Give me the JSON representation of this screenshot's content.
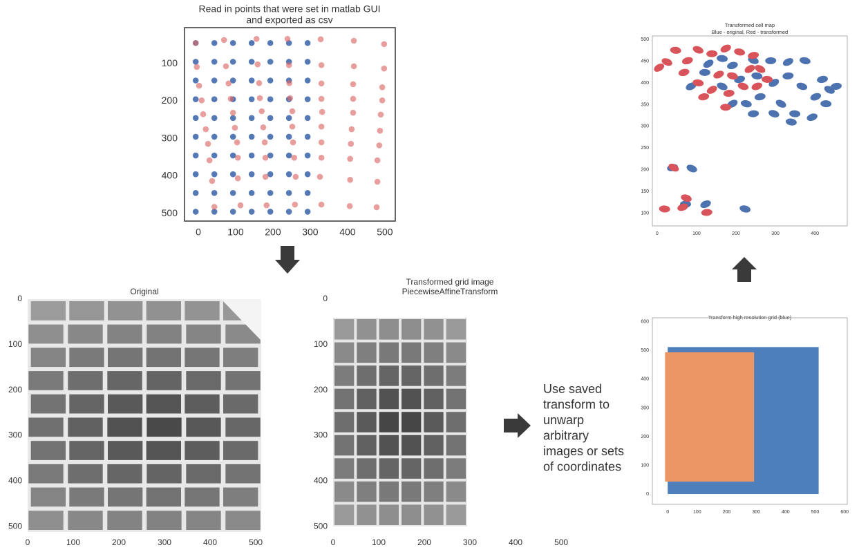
{
  "chart_data": [
    {
      "type": "scatter",
      "title": [
        "Read in points that were set in matlab GUI",
        "and exported as csv"
      ],
      "xlim": [
        -37,
        528
      ],
      "ylim": [
        520,
        4
      ],
      "xticks": [
        0,
        100,
        200,
        300,
        400,
        500
      ],
      "yticks": [
        100,
        200,
        300,
        400,
        500
      ],
      "series": [
        {
          "color": "#4c72b0",
          "x": [
            -7,
            43,
            93,
            143,
            193,
            243,
            293,
            -7,
            43,
            93,
            143,
            193,
            243,
            293,
            -7,
            43,
            93,
            143,
            193,
            243,
            293,
            -7,
            43,
            93,
            143,
            193,
            243,
            293,
            -7,
            43,
            93,
            143,
            193,
            243,
            293,
            -7,
            43,
            93,
            143,
            193,
            243,
            293,
            -7,
            43,
            93,
            143,
            193,
            243,
            293,
            -7,
            43,
            93,
            143,
            193,
            243,
            293,
            -7,
            43,
            93,
            143,
            193,
            243,
            293,
            -7,
            43,
            93,
            143,
            193,
            243,
            293
          ],
          "y": [
            45,
            45,
            45,
            45,
            45,
            45,
            45,
            95,
            95,
            95,
            95,
            95,
            95,
            95,
            145,
            145,
            145,
            145,
            145,
            145,
            145,
            195,
            195,
            195,
            195,
            195,
            195,
            195,
            245,
            245,
            245,
            245,
            245,
            245,
            245,
            295,
            295,
            295,
            295,
            295,
            295,
            295,
            345,
            345,
            345,
            345,
            345,
            345,
            345,
            395,
            395,
            395,
            395,
            395,
            395,
            395,
            445,
            445,
            445,
            445,
            445,
            445,
            445,
            495,
            495,
            495,
            495,
            495,
            495,
            495
          ]
        },
        {
          "color": "#dd6a6a",
          "x": [
            -7,
            69,
            156,
            239,
            328,
            417,
            498,
            -4,
            74,
            159,
            243,
            330,
            417,
            498,
            2,
            81,
            163,
            244,
            330,
            415,
            493,
            9,
            87,
            165,
            246,
            330,
            415,
            493,
            13,
            93,
            170,
            252,
            332,
            415,
            489,
            20,
            98,
            174,
            252,
            330,
            411,
            487,
            26,
            104,
            178,
            254,
            330,
            409,
            485,
            30,
            106,
            180,
            257,
            330,
            407,
            480,
            37,
            106,
            180,
            261,
            326,
            407,
            480,
            43,
            113,
            183,
            259,
            330,
            406,
            478
          ],
          "y": [
            45,
            37,
            34,
            34,
            35,
            39,
            48,
            109,
            107,
            102,
            104,
            104,
            107,
            113,
            159,
            153,
            152,
            152,
            153,
            155,
            163,
            198,
            194,
            192,
            192,
            194,
            194,
            198,
            235,
            231,
            227,
            227,
            229,
            231,
            236,
            275,
            271,
            270,
            268,
            268,
            275,
            279,
            314,
            310,
            310,
            310,
            310,
            314,
            318,
            358,
            351,
            351,
            351,
            351,
            354,
            358,
            413,
            406,
            402,
            402,
            402,
            410,
            415,
            482,
            478,
            478,
            476,
            476,
            480,
            483
          ]
        }
      ]
    },
    {
      "type": "scatter",
      "title": "Transformed cell map",
      "subtitle": "Blue - original, Red - transformed",
      "xlim": [
        -12,
        482
      ],
      "ylim": [
        71,
        508
      ],
      "xticks": [
        0,
        100,
        200,
        300,
        400
      ],
      "yticks": [
        100,
        150,
        200,
        250,
        300,
        350,
        400,
        450,
        500
      ],
      "series": [
        {
          "color": "#4c72b0",
          "x": [
            130,
            165,
            191,
            244,
            288,
            332,
            375,
            419,
            437,
            428,
            402,
            367,
            332,
            296,
            253,
            209,
            165,
            121,
            86,
            226,
            261,
            314,
            349,
            393,
            296,
            244,
            191,
            340,
            39,
            88,
            72,
            123,
            223,
            454
          ],
          "y": [
            444,
            456,
            440,
            452,
            451,
            448,
            451,
            408,
            384,
            352,
            368,
            392,
            416,
            400,
            416,
            408,
            392,
            424,
            392,
            352,
            368,
            352,
            329,
            321,
            329,
            329,
            352,
            310,
            205,
            203,
            121,
            121,
            110,
            392
          ]
        },
        {
          "color": "#d9545a",
          "x": [
            5,
            47,
            77,
            104,
            139,
            174,
            209,
            244,
            261,
            279,
            253,
            218,
            182,
            139,
            104,
            68,
            25,
            174,
            156,
            191,
            118,
            42,
            19,
            65,
            74,
            126,
            235
          ],
          "y": [
            435,
            475,
            451,
            476,
            467,
            479,
            471,
            463,
            432,
            408,
            392,
            392,
            376,
            384,
            400,
            424,
            448,
            344,
            419,
            416,
            368,
            205,
            110,
            114,
            135,
            102,
            432
          ]
        }
      ]
    },
    {
      "type": "image",
      "title": "Original",
      "xlim": [
        0,
        512
      ],
      "ylim": [
        512,
        0
      ],
      "xticks": [
        0,
        100,
        200,
        300,
        400,
        500
      ],
      "yticks": [
        0,
        100,
        200,
        300,
        400,
        500
      ]
    },
    {
      "type": "image",
      "title": [
        "Transformed grid image",
        "PiecewiseAffineTransform"
      ],
      "xlim": [
        0,
        512
      ],
      "ylim": [
        512,
        0
      ],
      "xticks": [
        0,
        100,
        200,
        300,
        400,
        500
      ],
      "yticks": [
        0,
        100,
        200,
        300,
        400,
        500
      ]
    },
    {
      "type": "region",
      "title": "Transform high resolution grid (blue)",
      "xlim": [
        -52,
        609
      ],
      "ylim": [
        -36,
        614
      ],
      "xticks": [
        0,
        100,
        200,
        300,
        400,
        500,
        600
      ],
      "yticks": [
        0,
        100,
        200,
        300,
        400,
        500,
        600
      ],
      "series": [
        {
          "color": "#4c7fbc",
          "x": [
            0,
            512
          ],
          "y": [
            0,
            512
          ]
        },
        {
          "color": "#ec9565",
          "x": [
            -9,
            293
          ],
          "y": [
            43,
            494
          ]
        }
      ]
    }
  ],
  "caption_lines": [
    "Use saved",
    "transform to",
    "unwarp",
    "arbitrary",
    "images or sets",
    "of coordinates"
  ]
}
